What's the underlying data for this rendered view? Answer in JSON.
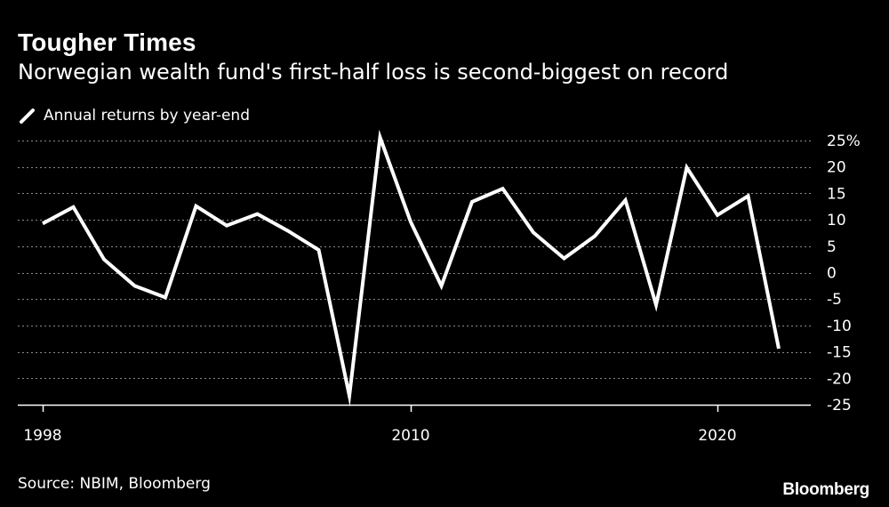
{
  "header": {
    "title": "Tougher Times",
    "subtitle": "Norwegian wealth fund's first-half loss is second-biggest on record"
  },
  "legend": {
    "label": "Annual returns by year-end",
    "icon": "line-swatch-icon"
  },
  "footer": {
    "source": "Source: NBIM, Bloomberg",
    "brand": "Bloomberg"
  },
  "colors": {
    "background": "#000000",
    "line": "#ffffff",
    "text": "#ffffff",
    "grid": "#8a8a8a"
  },
  "chart_data": {
    "type": "line",
    "title": "Tougher Times",
    "subtitle": "Norwegian wealth fund's first-half loss is second-biggest on record",
    "xlabel": "",
    "ylabel": "",
    "x": [
      1998,
      1999,
      2000,
      2001,
      2002,
      2003,
      2004,
      2005,
      2006,
      2007,
      2008,
      2009,
      2010,
      2011,
      2012,
      2013,
      2014,
      2015,
      2016,
      2017,
      2018,
      2019,
      2020,
      2021,
      2022
    ],
    "series": [
      {
        "name": "Annual returns by year-end",
        "values": [
          9.3,
          12.4,
          2.5,
          -2.5,
          -4.7,
          12.6,
          8.9,
          11.1,
          7.9,
          4.3,
          -23.3,
          25.6,
          9.6,
          -2.5,
          13.4,
          15.9,
          7.6,
          2.7,
          6.9,
          13.7,
          -6.1,
          19.9,
          10.9,
          14.5,
          -14.4
        ]
      }
    ],
    "xlim": [
      1998,
      2022
    ],
    "x_ticks": [
      1998,
      2010,
      2020
    ],
    "x_tick_labels": [
      "1998",
      "2010",
      "2020"
    ],
    "ylim": [
      -25,
      25
    ],
    "y_ticks": [
      25,
      20,
      15,
      10,
      5,
      0,
      -5,
      -10,
      -15,
      -20,
      -25
    ],
    "y_tick_labels": [
      "25%",
      "20",
      "15",
      "10",
      "5",
      "0",
      "-5",
      "-10",
      "-15",
      "-20",
      "-25"
    ],
    "grid": true,
    "legend_position": "top-left"
  }
}
